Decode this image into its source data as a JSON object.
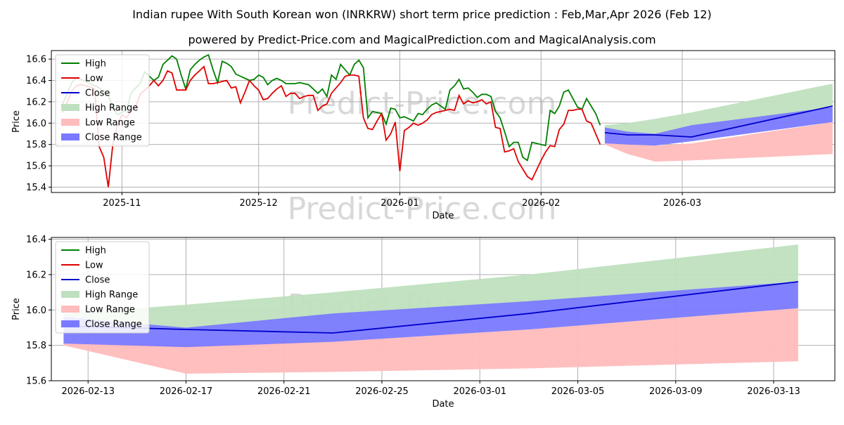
{
  "title_line1": "Indian rupee With South Korean won (INRKRW) short term price prediction : Feb,Mar,Apr 2026 (Feb 12)",
  "title_line2": "powered by Predict-Price.com and MagicalPrediction.com and MagicalAnalysis.com",
  "watermark": "Predict-Price.com",
  "colors": {
    "high": "#008000",
    "low": "#e00000",
    "close": "#0000cc",
    "high_range": "#bfe0bf",
    "low_range": "#ffbcbc",
    "close_range": "#7a7aff",
    "grid": "#b0b0b0"
  },
  "chart_data": [
    {
      "type": "line",
      "xlabel": "Date",
      "ylabel": "Price",
      "ylim": [
        15.35,
        16.68
      ],
      "yticks": [
        15.4,
        15.6,
        15.8,
        16.0,
        16.2,
        16.4,
        16.6
      ],
      "ytick_labels": [
        "15.4",
        "15.6",
        "15.8",
        "16.0",
        "16.2",
        "16.4",
        "16.6"
      ],
      "xlim": [
        -15.5,
        156.5
      ],
      "xticks": [
        0,
        30,
        61,
        92,
        123
      ],
      "xtick_labels": [
        "2025-11",
        "2025-12",
        "2026-01",
        "2026-02",
        "2026-03"
      ],
      "legend": [
        "High",
        "Low",
        "Close",
        "High Range",
        "Low Range",
        "Close Range"
      ],
      "legend_position": "upper-left",
      "history_x": [
        -13,
        -12,
        -11,
        -10,
        -9,
        -8,
        -7,
        -6,
        -5,
        -4,
        -3,
        -2,
        -1,
        0,
        1,
        2,
        3,
        4,
        5,
        6,
        7,
        8,
        9,
        10,
        11,
        12,
        13,
        14,
        15,
        16,
        17,
        18,
        19,
        20,
        21,
        22,
        23,
        24,
        25,
        26,
        27,
        28,
        29,
        30,
        31,
        32,
        33,
        34,
        35,
        36,
        37,
        38,
        39,
        40,
        41,
        42,
        43,
        44,
        45,
        46,
        47,
        48,
        49,
        50,
        51,
        52,
        53,
        54,
        55,
        56,
        57,
        58,
        59,
        60,
        61,
        62,
        63,
        64,
        65,
        66,
        67,
        68,
        69,
        70,
        71,
        72,
        73,
        74,
        75,
        76,
        77,
        78,
        79,
        80,
        81,
        82,
        83,
        84,
        85,
        86,
        87,
        88,
        89,
        90,
        91,
        92,
        93,
        94,
        95,
        96,
        97,
        98,
        99,
        100,
        101,
        102,
        103,
        104,
        105,
        106
      ],
      "high": [
        16.18,
        16.28,
        16.38,
        16.43,
        16.41,
        16.39,
        16.37,
        16.35,
        16.33,
        16.3,
        16.26,
        16.15,
        16.08,
        16.1,
        16.12,
        16.28,
        16.33,
        16.37,
        16.48,
        16.44,
        16.4,
        16.43,
        16.55,
        16.59,
        16.63,
        16.6,
        16.45,
        16.32,
        16.5,
        16.55,
        16.59,
        16.62,
        16.64,
        16.5,
        16.38,
        16.58,
        16.56,
        16.53,
        16.46,
        16.44,
        16.42,
        16.4,
        16.41,
        16.45,
        16.43,
        16.36,
        16.4,
        16.42,
        16.4,
        16.37,
        16.37,
        16.37,
        16.38,
        16.37,
        16.36,
        16.32,
        16.28,
        16.32,
        16.25,
        16.45,
        16.41,
        16.55,
        16.5,
        16.45,
        16.55,
        16.59,
        16.52,
        16.05,
        16.11,
        16.1,
        16.09,
        15.99,
        16.14,
        16.13,
        16.05,
        16.06,
        16.04,
        16.02,
        16.09,
        16.08,
        16.13,
        16.17,
        16.19,
        16.16,
        16.13,
        16.31,
        16.35,
        16.41,
        16.32,
        16.33,
        16.29,
        16.24,
        16.27,
        16.27,
        16.25,
        16.11,
        16.05,
        15.92,
        15.78,
        15.82,
        15.82,
        15.68,
        15.65,
        15.82,
        15.81,
        15.8,
        15.79,
        16.12,
        16.09,
        16.16,
        16.29,
        16.31,
        16.23,
        16.15,
        16.13,
        16.23,
        16.16,
        16.09,
        15.98
      ],
      "low": [
        16.1,
        16.2,
        16.3,
        16.35,
        16.36,
        16.35,
        16.34,
        16.32,
        15.78,
        15.68,
        15.4,
        15.8,
        15.98,
        16.08,
        16.05,
        16.12,
        16.15,
        16.27,
        16.31,
        16.35,
        16.4,
        16.35,
        16.4,
        16.49,
        16.47,
        16.31,
        16.31,
        16.31,
        16.4,
        16.45,
        16.49,
        16.53,
        16.37,
        16.37,
        16.38,
        16.39,
        16.4,
        16.33,
        16.34,
        16.19,
        16.29,
        16.4,
        16.35,
        16.31,
        16.22,
        16.23,
        16.28,
        16.32,
        16.35,
        16.25,
        16.28,
        16.28,
        16.23,
        16.25,
        16.26,
        16.26,
        16.12,
        16.16,
        16.18,
        16.28,
        16.33,
        16.38,
        16.44,
        16.45,
        16.45,
        16.44,
        16.05,
        15.95,
        15.94,
        16.02,
        16.09,
        15.84,
        15.9,
        16.01,
        15.55,
        15.93,
        15.96,
        16.0,
        15.98,
        16.0,
        16.03,
        16.08,
        16.1,
        16.11,
        16.12,
        16.13,
        16.12,
        16.26,
        16.18,
        16.21,
        16.19,
        16.2,
        16.22,
        16.18,
        16.2,
        15.96,
        15.95,
        15.73,
        15.74,
        15.76,
        15.64,
        15.57,
        15.5,
        15.47,
        15.56,
        15.65,
        15.73,
        15.79,
        15.78,
        15.94,
        15.99,
        16.12,
        16.12,
        16.13,
        16.13,
        16.02,
        16.0,
        15.9,
        15.8
      ],
      "forecast_x": [
        106,
        111,
        117,
        125,
        156
      ],
      "forecast_close": [
        15.91,
        15.89,
        15.89,
        15.87,
        16.16
      ],
      "high_range_upper": [
        15.98,
        16.0,
        16.04,
        16.1,
        16.37
      ],
      "high_range_lower": [
        15.91,
        15.89,
        15.89,
        15.87,
        16.16
      ],
      "low_range_upper": [
        15.81,
        15.8,
        15.79,
        15.81,
        16.01
      ],
      "low_range_lower": [
        15.8,
        15.71,
        15.64,
        15.65,
        15.71
      ],
      "close_range_upper": [
        15.96,
        15.92,
        15.9,
        15.98,
        16.15
      ],
      "close_range_lower": [
        15.81,
        15.8,
        15.79,
        15.83,
        16.01
      ]
    },
    {
      "type": "line",
      "xlabel": "Date",
      "ylabel": "Price",
      "ylim": [
        15.6,
        16.41
      ],
      "yticks": [
        15.6,
        15.8,
        16.0,
        16.2,
        16.4
      ],
      "ytick_labels": [
        "15.6",
        "15.8",
        "16.0",
        "16.2",
        "16.4"
      ],
      "xlim": [
        -0.5,
        31.5
      ],
      "xticks": [
        1,
        5,
        9,
        13,
        17,
        21,
        25,
        29
      ],
      "xtick_labels": [
        "2026-02-13",
        "2026-02-17",
        "2026-02-21",
        "2026-02-25",
        "2026-03-01",
        "2026-03-05",
        "2026-03-09",
        "2026-03-13"
      ],
      "legend": [
        "High",
        "Low",
        "Close",
        "High Range",
        "Low Range",
        "Close Range"
      ],
      "legend_position": "upper-left",
      "x": [
        0,
        5,
        11,
        19,
        30
      ],
      "close": [
        15.91,
        15.89,
        15.87,
        15.98,
        16.16
      ],
      "high_range_upper": [
        15.98,
        16.03,
        16.1,
        16.2,
        16.37
      ],
      "high_range_lower": [
        15.91,
        15.89,
        15.87,
        15.98,
        16.16
      ],
      "low_range_upper": [
        15.81,
        15.8,
        15.82,
        15.89,
        16.01
      ],
      "low_range_lower": [
        15.8,
        15.64,
        15.65,
        15.67,
        15.71
      ],
      "close_range_upper": [
        15.96,
        15.9,
        15.98,
        16.05,
        16.16
      ],
      "close_range_lower": [
        15.81,
        15.79,
        15.82,
        15.89,
        16.01
      ]
    }
  ]
}
